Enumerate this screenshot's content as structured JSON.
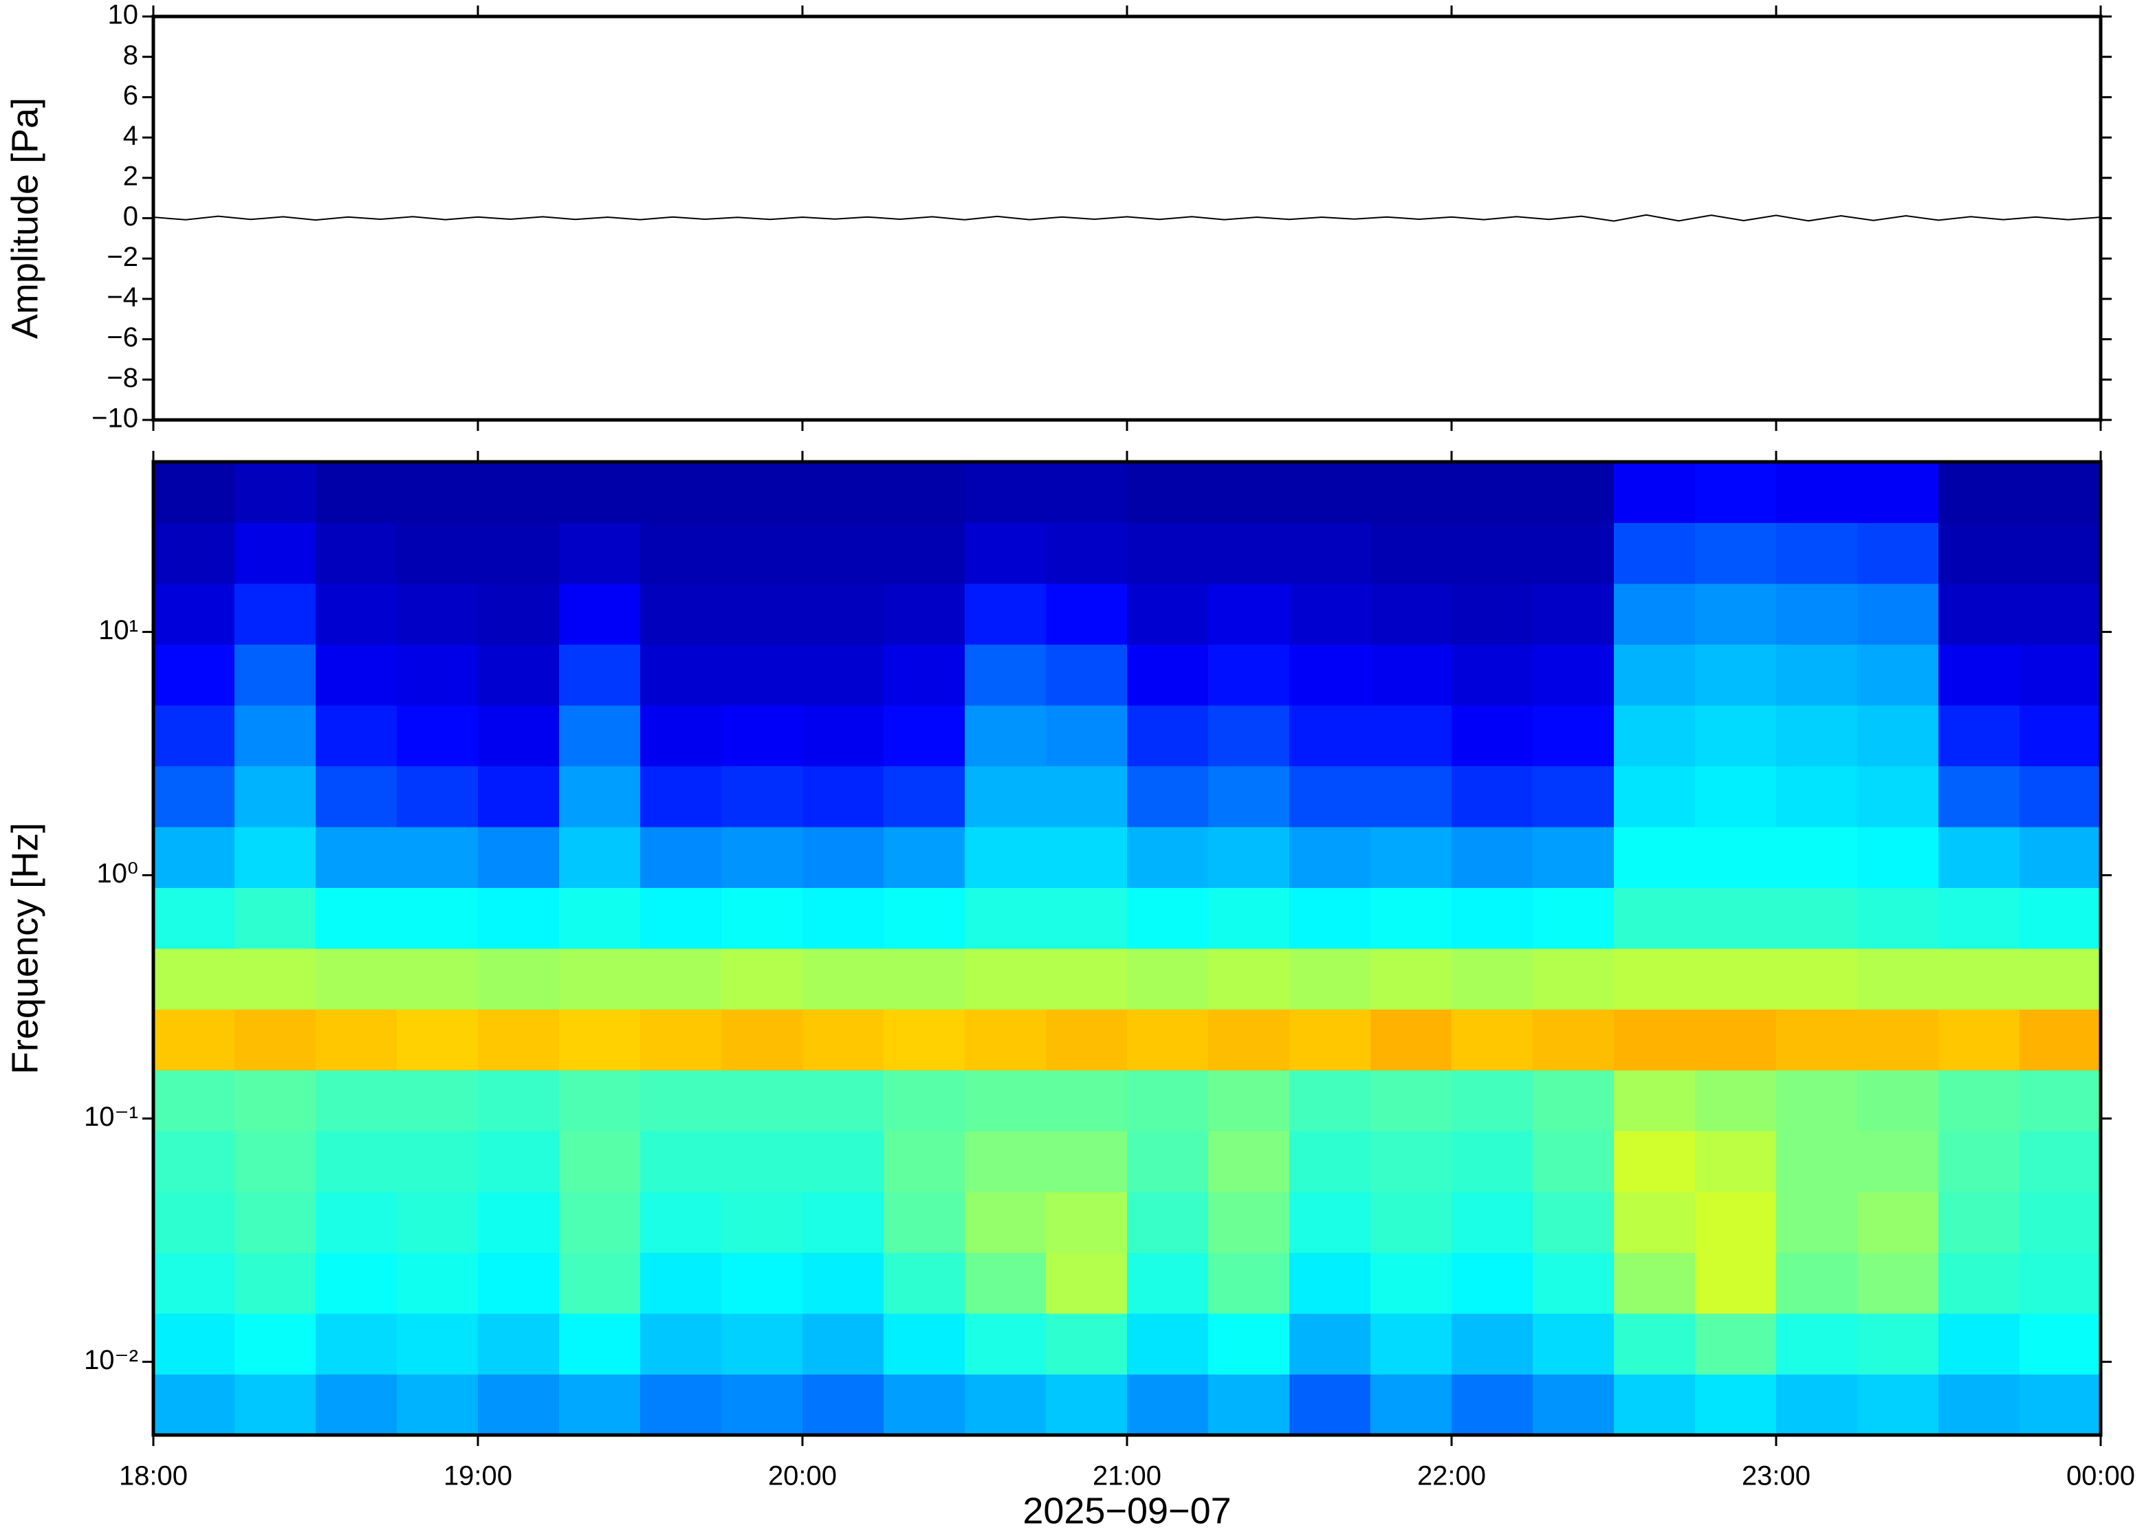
{
  "chart_data": [
    {
      "type": "line",
      "ylabel": "Amplitude [Pa]",
      "color": "#000000",
      "xlim": [
        18,
        24
      ],
      "ylim": [
        -10,
        10
      ],
      "yticks": [
        {
          "value": -10,
          "label": "−10"
        },
        {
          "value": -8,
          "label": "−8"
        },
        {
          "value": -6,
          "label": "−6"
        },
        {
          "value": -4,
          "label": "−4"
        },
        {
          "value": -2,
          "label": "−2"
        },
        0,
        2,
        4,
        6,
        8,
        10
      ],
      "x": [
        18,
        18.1,
        18.2,
        18.3,
        18.4,
        18.5,
        18.6,
        18.7,
        18.8,
        18.9,
        19,
        19.1,
        19.2,
        19.3,
        19.4,
        19.5,
        19.6,
        19.7,
        19.8,
        19.9,
        20,
        20.1,
        20.2,
        20.3,
        20.4,
        20.5,
        20.6,
        20.7,
        20.8,
        20.9,
        21,
        21.1,
        21.2,
        21.3,
        21.4,
        21.5,
        21.6,
        21.7,
        21.8,
        21.9,
        22,
        22.1,
        22.2,
        22.3,
        22.4,
        22.5,
        22.6,
        22.7,
        22.8,
        22.9,
        23,
        23.1,
        23.2,
        23.3,
        23.4,
        23.5,
        23.6,
        23.7,
        23.8,
        23.9,
        24
      ],
      "values": [
        0.05,
        -0.08,
        0.1,
        -0.06,
        0.07,
        -0.09,
        0.06,
        -0.05,
        0.08,
        -0.07,
        0.06,
        -0.05,
        0.07,
        -0.06,
        0.05,
        -0.07,
        0.06,
        -0.05,
        0.04,
        -0.06,
        0.05,
        -0.04,
        0.06,
        -0.05,
        0.07,
        -0.08,
        0.09,
        -0.07,
        0.06,
        -0.05,
        0.07,
        -0.06,
        0.08,
        -0.07,
        0.05,
        -0.06,
        0.05,
        -0.04,
        0.06,
        -0.05,
        0.06,
        -0.07,
        0.08,
        -0.06,
        0.1,
        -0.14,
        0.16,
        -0.13,
        0.15,
        -0.12,
        0.14,
        -0.13,
        0.12,
        -0.11,
        0.12,
        -0.1,
        0.08,
        -0.07,
        0.06,
        -0.07,
        0.05
      ]
    },
    {
      "type": "heatmap",
      "ylabel": "Frequency [Hz]",
      "xlabel": "2025−09−07",
      "colormap": "jet",
      "log_y": true,
      "xlim": [
        18,
        24
      ],
      "ylim": [
        0.005,
        50
      ],
      "xticks": [
        {
          "value": 18,
          "label": "18:00"
        },
        {
          "value": 19,
          "label": "19:00"
        },
        {
          "value": 20,
          "label": "20:00"
        },
        {
          "value": 21,
          "label": "21:00"
        },
        {
          "value": 22,
          "label": "22:00"
        },
        {
          "value": 23,
          "label": "23:00"
        },
        {
          "value": 24,
          "label": "00:00"
        }
      ],
      "yticks": [
        {
          "value": 0.01,
          "label": "10⁻²"
        },
        {
          "value": 0.1,
          "label": "10⁻¹"
        },
        {
          "value": 1,
          "label": "10⁰"
        },
        {
          "value": 10,
          "label": "10¹"
        }
      ],
      "x_bins": [
        18,
        18.25,
        18.5,
        18.75,
        19,
        19.25,
        19.5,
        19.75,
        20,
        20.25,
        20.5,
        20.75,
        21,
        21.25,
        21.5,
        21.75,
        22,
        22.25,
        22.5,
        22.75,
        23,
        23.25,
        23.5,
        23.75,
        24
      ],
      "y_bins": [
        0.005,
        0.0089,
        0.0158,
        0.0281,
        0.05,
        0.0889,
        0.158,
        0.281,
        0.5,
        0.889,
        1.58,
        2.81,
        5,
        8.89,
        15.8,
        28.1,
        50
      ],
      "values": [
        [
          0.3,
          0.32,
          0.28,
          0.3,
          0.27,
          0.29,
          0.25,
          0.26,
          0.24,
          0.28,
          0.3,
          0.32,
          0.27,
          0.3,
          0.22,
          0.28,
          0.24,
          0.27,
          0.33,
          0.35,
          0.32,
          0.33,
          0.3,
          0.31
        ],
        [
          0.36,
          0.38,
          0.34,
          0.35,
          0.33,
          0.37,
          0.32,
          0.33,
          0.31,
          0.36,
          0.4,
          0.42,
          0.35,
          0.38,
          0.3,
          0.34,
          0.31,
          0.34,
          0.42,
          0.46,
          0.4,
          0.41,
          0.36,
          0.38
        ],
        [
          0.4,
          0.42,
          0.38,
          0.39,
          0.37,
          0.44,
          0.36,
          0.37,
          0.36,
          0.42,
          0.48,
          0.55,
          0.4,
          0.46,
          0.36,
          0.39,
          0.37,
          0.4,
          0.52,
          0.58,
          0.48,
          0.5,
          0.42,
          0.41
        ],
        [
          0.42,
          0.44,
          0.4,
          0.41,
          0.39,
          0.45,
          0.4,
          0.41,
          0.4,
          0.46,
          0.52,
          0.54,
          0.43,
          0.48,
          0.4,
          0.42,
          0.4,
          0.43,
          0.56,
          0.58,
          0.5,
          0.52,
          0.44,
          0.42
        ],
        [
          0.43,
          0.45,
          0.42,
          0.42,
          0.41,
          0.46,
          0.42,
          0.42,
          0.42,
          0.47,
          0.5,
          0.5,
          0.45,
          0.5,
          0.42,
          0.43,
          0.42,
          0.45,
          0.58,
          0.56,
          0.5,
          0.5,
          0.45,
          0.43
        ],
        [
          0.45,
          0.46,
          0.44,
          0.44,
          0.43,
          0.45,
          0.44,
          0.44,
          0.44,
          0.46,
          0.47,
          0.47,
          0.46,
          0.48,
          0.44,
          0.45,
          0.44,
          0.46,
          0.54,
          0.52,
          0.5,
          0.49,
          0.46,
          0.45
        ],
        [
          0.68,
          0.69,
          0.68,
          0.67,
          0.68,
          0.67,
          0.68,
          0.69,
          0.68,
          0.67,
          0.68,
          0.69,
          0.68,
          0.69,
          0.68,
          0.7,
          0.68,
          0.69,
          0.7,
          0.7,
          0.69,
          0.69,
          0.68,
          0.7
        ],
        [
          0.55,
          0.55,
          0.54,
          0.54,
          0.53,
          0.54,
          0.54,
          0.55,
          0.54,
          0.54,
          0.55,
          0.55,
          0.54,
          0.55,
          0.54,
          0.55,
          0.54,
          0.55,
          0.56,
          0.56,
          0.56,
          0.55,
          0.55,
          0.55
        ],
        [
          0.4,
          0.42,
          0.38,
          0.38,
          0.37,
          0.39,
          0.37,
          0.38,
          0.37,
          0.38,
          0.4,
          0.4,
          0.38,
          0.39,
          0.37,
          0.38,
          0.37,
          0.38,
          0.42,
          0.42,
          0.42,
          0.41,
          0.4,
          0.39
        ],
        [
          0.3,
          0.34,
          0.28,
          0.28,
          0.26,
          0.32,
          0.26,
          0.27,
          0.26,
          0.28,
          0.34,
          0.34,
          0.3,
          0.31,
          0.28,
          0.29,
          0.27,
          0.28,
          0.38,
          0.38,
          0.38,
          0.37,
          0.32,
          0.3
        ],
        [
          0.22,
          0.3,
          0.2,
          0.18,
          0.15,
          0.28,
          0.16,
          0.17,
          0.16,
          0.18,
          0.3,
          0.3,
          0.22,
          0.24,
          0.2,
          0.2,
          0.17,
          0.18,
          0.35,
          0.36,
          0.35,
          0.34,
          0.22,
          0.2
        ],
        [
          0.17,
          0.26,
          0.15,
          0.13,
          0.11,
          0.24,
          0.11,
          0.12,
          0.11,
          0.13,
          0.27,
          0.26,
          0.17,
          0.19,
          0.15,
          0.15,
          0.12,
          0.13,
          0.33,
          0.34,
          0.33,
          0.32,
          0.16,
          0.14
        ],
        [
          0.13,
          0.22,
          0.11,
          0.1,
          0.08,
          0.18,
          0.08,
          0.08,
          0.08,
          0.1,
          0.22,
          0.2,
          0.12,
          0.14,
          0.12,
          0.11,
          0.09,
          0.1,
          0.3,
          0.31,
          0.3,
          0.29,
          0.11,
          0.1
        ],
        [
          0.09,
          0.16,
          0.08,
          0.07,
          0.06,
          0.12,
          0.06,
          0.06,
          0.06,
          0.07,
          0.15,
          0.13,
          0.08,
          0.1,
          0.08,
          0.07,
          0.06,
          0.07,
          0.26,
          0.27,
          0.26,
          0.25,
          0.07,
          0.07
        ],
        [
          0.06,
          0.1,
          0.06,
          0.05,
          0.05,
          0.07,
          0.05,
          0.05,
          0.05,
          0.05,
          0.08,
          0.07,
          0.06,
          0.06,
          0.06,
          0.05,
          0.05,
          0.05,
          0.2,
          0.21,
          0.2,
          0.19,
          0.05,
          0.05
        ],
        [
          0.04,
          0.06,
          0.04,
          0.04,
          0.04,
          0.04,
          0.04,
          0.04,
          0.04,
          0.04,
          0.05,
          0.05,
          0.04,
          0.04,
          0.04,
          0.04,
          0.04,
          0.04,
          0.12,
          0.13,
          0.12,
          0.12,
          0.04,
          0.04
        ]
      ]
    }
  ]
}
